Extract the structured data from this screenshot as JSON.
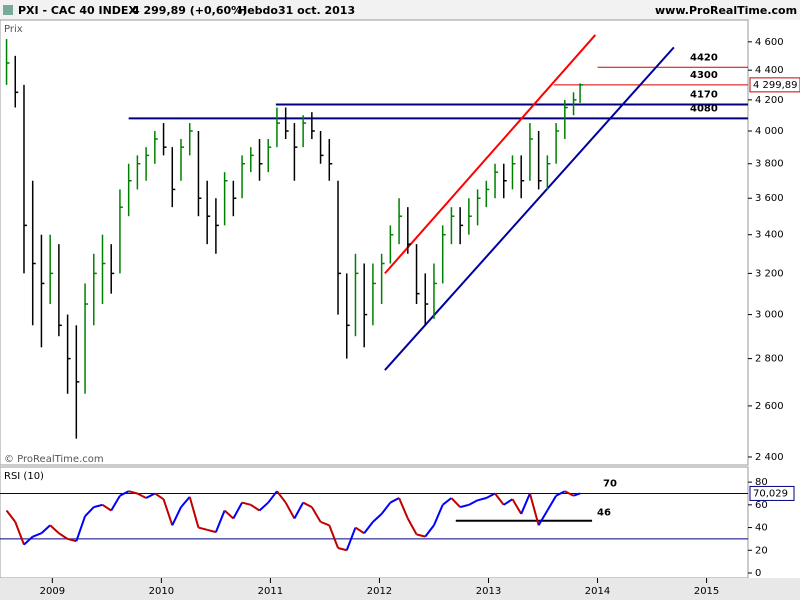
{
  "chart_data": {
    "type": "ohlc",
    "header": {
      "instrument": "PXI - CAC 40 INDEX",
      "quote": "4 299,89 (+0,60%)",
      "period": "Hebdo",
      "date": "31 oct. 2013",
      "site": "www.ProRealTime.com"
    },
    "price_label": "Prix",
    "copyright": "© ProRealTime.com",
    "x": [
      2008.58,
      2008.66,
      2008.74,
      2008.82,
      2008.9,
      2008.98,
      2009.06,
      2009.14,
      2009.22,
      2009.3,
      2009.38,
      2009.46,
      2009.54,
      2009.62,
      2009.7,
      2009.78,
      2009.86,
      2009.94,
      2010.02,
      2010.1,
      2010.18,
      2010.26,
      2010.34,
      2010.42,
      2010.5,
      2010.58,
      2010.66,
      2010.74,
      2010.82,
      2010.9,
      2010.98,
      2011.06,
      2011.14,
      2011.22,
      2011.3,
      2011.38,
      2011.46,
      2011.54,
      2011.62,
      2011.7,
      2011.78,
      2011.86,
      2011.94,
      2012.02,
      2012.1,
      2012.18,
      2012.26,
      2012.34,
      2012.42,
      2012.5,
      2012.58,
      2012.66,
      2012.74,
      2012.82,
      2012.9,
      2012.98,
      2013.06,
      2013.14,
      2013.22,
      2013.3,
      2013.38,
      2013.46,
      2013.54,
      2013.62,
      2013.7,
      2013.78,
      2013.84
    ],
    "high": [
      4620,
      4500,
      4300,
      3700,
      3400,
      3400,
      3350,
      3000,
      2950,
      3150,
      3300,
      3400,
      3350,
      3650,
      3800,
      3850,
      3900,
      4000,
      4050,
      3900,
      3950,
      4050,
      4000,
      3700,
      3600,
      3750,
      3700,
      3850,
      3900,
      3950,
      3950,
      4150,
      4150,
      4050,
      4100,
      4120,
      4000,
      3950,
      3700,
      3200,
      3300,
      3250,
      3250,
      3300,
      3450,
      3600,
      3550,
      3350,
      3200,
      3250,
      3450,
      3550,
      3550,
      3600,
      3650,
      3700,
      3800,
      3800,
      3850,
      3850,
      4050,
      4000,
      3850,
      4050,
      4200,
      4250,
      4310
    ],
    "low": [
      4300,
      4150,
      3200,
      2950,
      2850,
      3050,
      2900,
      2650,
      2470,
      2650,
      2950,
      3050,
      3100,
      3200,
      3500,
      3650,
      3700,
      3800,
      3850,
      3550,
      3700,
      3850,
      3500,
      3350,
      3300,
      3450,
      3500,
      3600,
      3750,
      3700,
      3750,
      3900,
      3950,
      3700,
      3900,
      3950,
      3800,
      3700,
      3000,
      2800,
      2900,
      2850,
      2950,
      3050,
      3250,
      3350,
      3300,
      3050,
      2950,
      2980,
      3150,
      3350,
      3350,
      3400,
      3450,
      3550,
      3600,
      3600,
      3650,
      3600,
      3700,
      3650,
      3650,
      3800,
      3950,
      4100,
      4180
    ],
    "close": [
      4450,
      4250,
      3450,
      3250,
      3150,
      3200,
      2950,
      2800,
      2700,
      3050,
      3200,
      3250,
      3200,
      3550,
      3700,
      3800,
      3850,
      3950,
      3900,
      3650,
      3900,
      4000,
      3600,
      3500,
      3450,
      3700,
      3600,
      3800,
      3850,
      3800,
      3900,
      4050,
      4000,
      3900,
      4050,
      4000,
      3850,
      3800,
      3200,
      2950,
      3200,
      3000,
      3150,
      3250,
      3400,
      3500,
      3350,
      3100,
      3050,
      3150,
      3400,
      3500,
      3450,
      3500,
      3600,
      3650,
      3750,
      3700,
      3800,
      3700,
      3950,
      3700,
      3800,
      4000,
      4150,
      4200,
      4299.89
    ],
    "last_label": "4 299,89",
    "xlim": [
      2008.52,
      2015.38
    ],
    "xticks": [
      2009,
      2010,
      2011,
      2012,
      2013,
      2014,
      2015
    ],
    "ylim": [
      2370,
      4760
    ],
    "log_scale": true,
    "yticks": [
      {
        "value": 2400,
        "label": "2 400"
      },
      {
        "value": 2600,
        "label": "2 600"
      },
      {
        "value": 2800,
        "label": "2 800"
      },
      {
        "value": 3000,
        "label": "3 000"
      },
      {
        "value": 3200,
        "label": "3 200"
      },
      {
        "value": 3400,
        "label": "3 400"
      },
      {
        "value": 3600,
        "label": "3 600"
      },
      {
        "value": 3800,
        "label": "3 800"
      },
      {
        "value": 4000,
        "label": "4 000"
      },
      {
        "value": 4200,
        "label": "4 200"
      },
      {
        "value": 4400,
        "label": "4 400"
      },
      {
        "value": 4600,
        "label": "4 600"
      }
    ],
    "levels": [
      {
        "value": 4420,
        "color": "#d00000",
        "start": 2014.0
      },
      {
        "value": 4300,
        "color": "#d00000",
        "start": 2013.6
      },
      {
        "value": 4170,
        "color": "#000080",
        "start": 2011.05
      },
      {
        "value": 4080,
        "color": "#000080",
        "start": 2009.7
      }
    ],
    "trend_lines": [
      {
        "color": "#ff0000",
        "x": [
          2012.05,
          2013.98
        ],
        "y": [
          3200,
          4650
        ]
      },
      {
        "color": "#0000a0",
        "x": [
          2012.05,
          2014.7
        ],
        "y": [
          2750,
          4560
        ]
      }
    ],
    "rsi": {
      "title": "RSI (10)",
      "values": [
        55,
        45,
        25,
        32,
        35,
        42,
        35,
        30,
        28,
        50,
        58,
        60,
        55,
        68,
        72,
        70,
        66,
        70,
        65,
        42,
        58,
        67,
        40,
        38,
        36,
        55,
        48,
        62,
        60,
        55,
        62,
        72,
        62,
        48,
        62,
        58,
        45,
        42,
        22,
        20,
        40,
        35,
        45,
        52,
        62,
        66,
        48,
        34,
        32,
        42,
        60,
        66,
        58,
        60,
        64,
        66,
        70,
        60,
        65,
        52,
        70,
        42,
        55,
        68,
        72,
        68,
        70.029
      ],
      "last_label": "70,029",
      "up_color": "#0000ff",
      "down_color": "#c00000",
      "ylim": [
        -4.4,
        93.3
      ],
      "yticks": [
        0,
        20,
        40,
        60,
        80
      ],
      "levels": [
        70,
        30
      ],
      "support": {
        "value": 46,
        "start": 2012.7,
        "end": 2013.95
      }
    }
  }
}
